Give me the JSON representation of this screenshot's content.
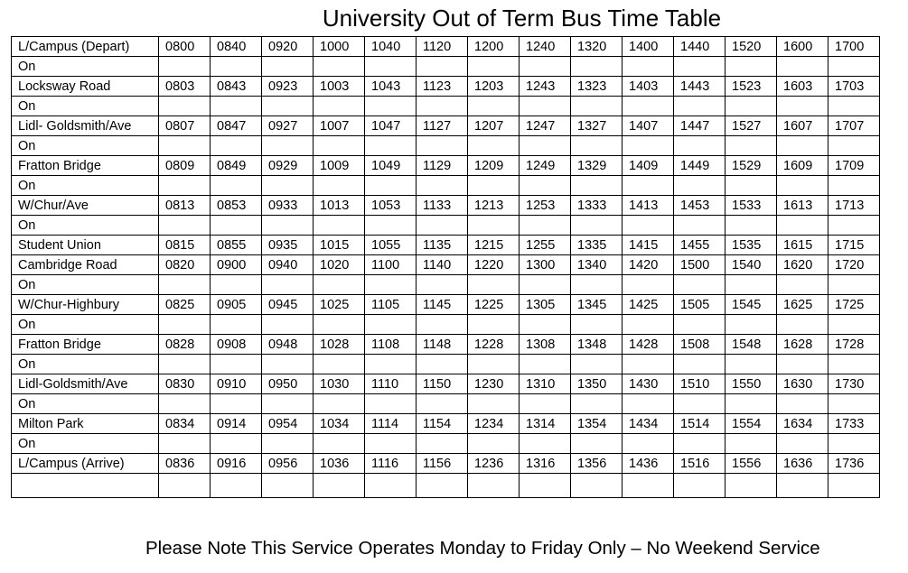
{
  "title": "University Out of Term Bus Time Table",
  "rows": [
    {
      "stop": "L/Campus (Depart)",
      "times": [
        "0800",
        "0840",
        "0920",
        "1000",
        "1040",
        "1120",
        "1200",
        "1240",
        "1320",
        "1400",
        "1440",
        "1520",
        "1600",
        "1700"
      ]
    },
    {
      "stop": "On",
      "times": []
    },
    {
      "stop": "Locksway Road",
      "times": [
        "0803",
        "0843",
        "0923",
        "1003",
        "1043",
        "1123",
        "1203",
        "1243",
        "1323",
        "1403",
        "1443",
        "1523",
        "1603",
        "1703"
      ]
    },
    {
      "stop": "On",
      "times": []
    },
    {
      "stop": "Lidl- Goldsmith/Ave",
      "times": [
        "0807",
        "0847",
        "0927",
        "1007",
        "1047",
        "1127",
        "1207",
        "1247",
        "1327",
        "1407",
        "1447",
        "1527",
        "1607",
        "1707"
      ]
    },
    {
      "stop": "On",
      "times": []
    },
    {
      "stop": "Fratton Bridge",
      "times": [
        "0809",
        "0849",
        "0929",
        "1009",
        "1049",
        "1129",
        "1209",
        "1249",
        "1329",
        "1409",
        "1449",
        "1529",
        "1609",
        "1709"
      ]
    },
    {
      "stop": "On",
      "times": []
    },
    {
      "stop": "W/Chur/Ave",
      "times": [
        "0813",
        "0853",
        "0933",
        "1013",
        "1053",
        "1133",
        "1213",
        "1253",
        "1333",
        "1413",
        "1453",
        "1533",
        "1613",
        "1713"
      ]
    },
    {
      "stop": "On",
      "times": []
    },
    {
      "stop": "Student Union",
      "times": [
        "0815",
        "0855",
        "0935",
        "1015",
        "1055",
        "1135",
        "1215",
        "1255",
        "1335",
        "1415",
        "1455",
        "1535",
        "1615",
        "1715"
      ]
    },
    {
      "stop": "Cambridge Road",
      "times": [
        "0820",
        "0900",
        "0940",
        "1020",
        "1100",
        "1140",
        "1220",
        "1300",
        "1340",
        "1420",
        "1500",
        "1540",
        "1620",
        "1720"
      ]
    },
    {
      "stop": "On",
      "times": []
    },
    {
      "stop": "W/Chur-Highbury",
      "times": [
        "0825",
        "0905",
        "0945",
        "1025",
        "1105",
        "1145",
        "1225",
        "1305",
        "1345",
        "1425",
        "1505",
        "1545",
        "1625",
        "1725"
      ]
    },
    {
      "stop": "On",
      "times": []
    },
    {
      "stop": "Fratton Bridge",
      "times": [
        "0828",
        "0908",
        "0948",
        "1028",
        "1108",
        "1148",
        "1228",
        "1308",
        "1348",
        "1428",
        "1508",
        "1548",
        "1628",
        "1728"
      ]
    },
    {
      "stop": "On",
      "times": []
    },
    {
      "stop": "Lidl-Goldsmith/Ave",
      "times": [
        "0830",
        "0910",
        "0950",
        "1030",
        "1110",
        "1150",
        "1230",
        "1310",
        "1350",
        "1430",
        "1510",
        "1550",
        "1630",
        "1730"
      ]
    },
    {
      "stop": "On",
      "times": []
    },
    {
      "stop": "Milton Park",
      "times": [
        "0834",
        "0914",
        "0954",
        "1034",
        "1114",
        "1154",
        "1234",
        "1314",
        "1354",
        "1434",
        "1514",
        "1554",
        "1634",
        "1733"
      ]
    },
    {
      "stop": "On",
      "times": []
    },
    {
      "stop": "L/Campus (Arrive)",
      "times": [
        "0836",
        "0916",
        "0956",
        "1036",
        "1116",
        "1156",
        "1236",
        "1316",
        "1356",
        "1436",
        "1516",
        "1556",
        "1636",
        "1736"
      ]
    },
    {
      "stop": "",
      "times": []
    }
  ],
  "note": "Please Note This Service Operates Monday to Friday Only – No Weekend Service"
}
